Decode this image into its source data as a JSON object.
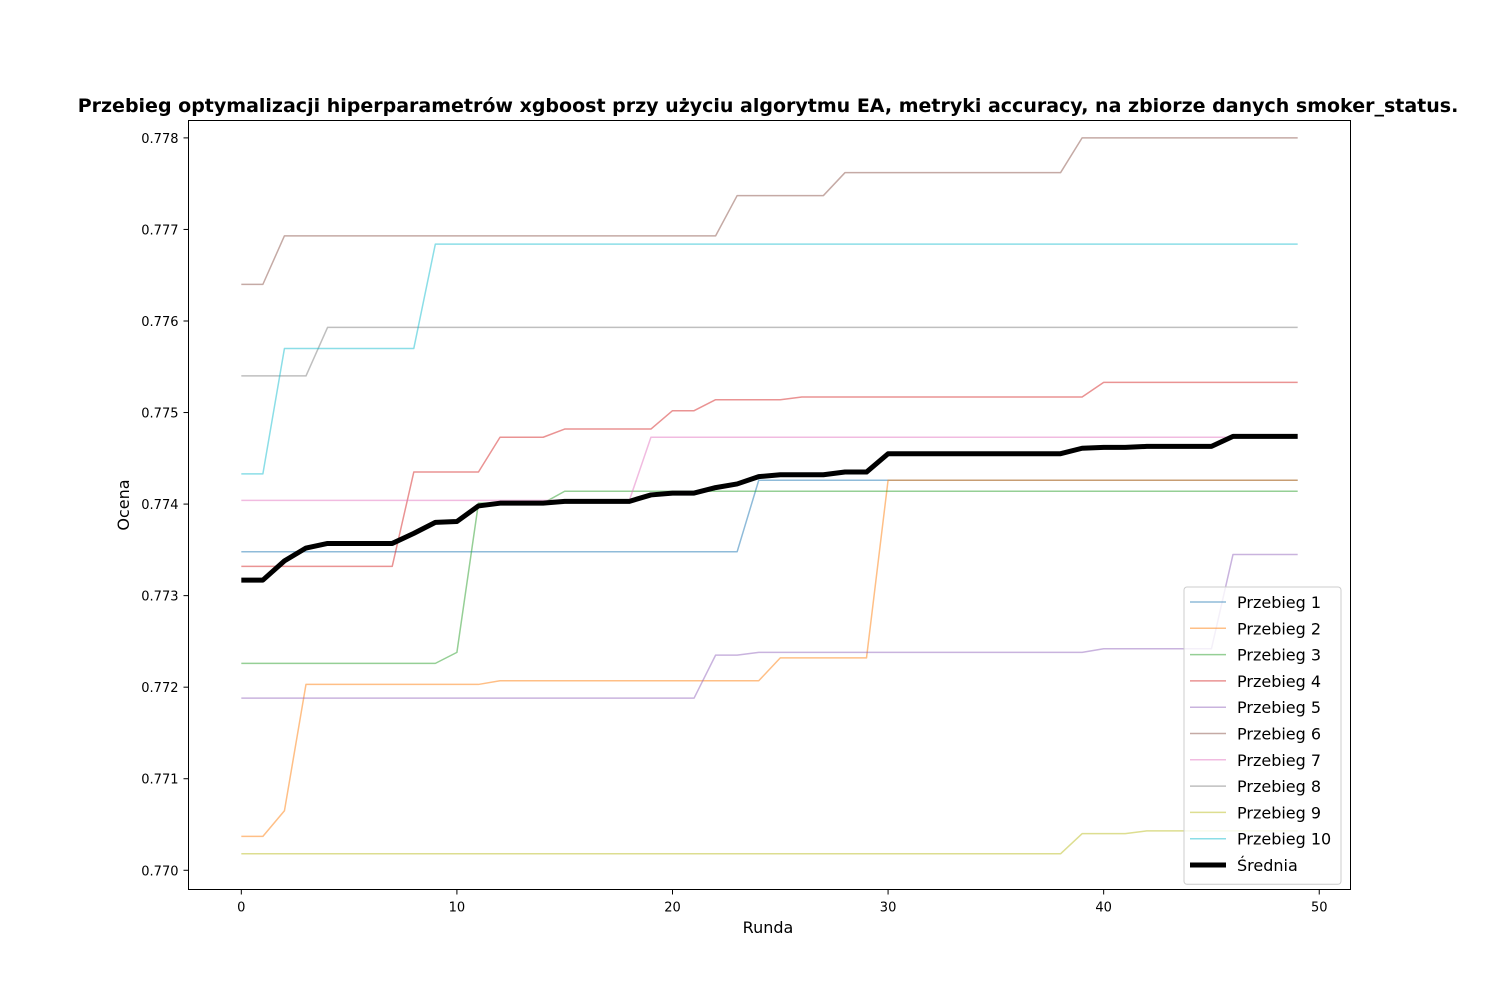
{
  "chart_data": {
    "type": "line",
    "title": "Przebieg optymalizacji hiperparametrów xgboost przy użyciu algorytmu EA, metryki accuracy, na zbiorze danych smoker_status.",
    "xlabel": "Runda",
    "ylabel": "Ocena",
    "xlim": [
      -2.45,
      51.45
    ],
    "ylim": [
      0.76979,
      0.77819
    ],
    "xticks": [
      0,
      10,
      20,
      30,
      40,
      50
    ],
    "xtick_labels": [
      "0",
      "10",
      "20",
      "30",
      "40",
      "50"
    ],
    "yticks": [
      0.77,
      0.771,
      0.772,
      0.773,
      0.774,
      0.775,
      0.776,
      0.777,
      0.778
    ],
    "ytick_labels": [
      "0.770",
      "0.771",
      "0.772",
      "0.773",
      "0.774",
      "0.775",
      "0.776",
      "0.777",
      "0.778"
    ],
    "grid": false,
    "legend_position": "lower-right",
    "x": [
      0,
      1,
      2,
      3,
      4,
      5,
      6,
      7,
      8,
      9,
      10,
      11,
      12,
      13,
      14,
      15,
      16,
      17,
      18,
      19,
      20,
      21,
      22,
      23,
      24,
      25,
      26,
      27,
      28,
      29,
      30,
      31,
      32,
      33,
      34,
      35,
      36,
      37,
      38,
      39,
      40,
      41,
      42,
      43,
      44,
      45,
      46,
      47,
      48,
      49
    ],
    "series": [
      {
        "name": "Przebieg 1",
        "color": "#1f77b4",
        "opacity": 0.5,
        "width": 1.5,
        "values": [
          0.77348,
          0.77348,
          0.77348,
          0.77348,
          0.77348,
          0.77348,
          0.77348,
          0.77348,
          0.77348,
          0.77348,
          0.77348,
          0.77348,
          0.77348,
          0.77348,
          0.77348,
          0.77348,
          0.77348,
          0.77348,
          0.77348,
          0.77348,
          0.77348,
          0.77348,
          0.77348,
          0.77348,
          0.77426,
          0.77426,
          0.77426,
          0.77426,
          0.77426,
          0.77426,
          0.77426,
          0.77426,
          0.77426,
          0.77426,
          0.77426,
          0.77426,
          0.77426,
          0.77426,
          0.77426,
          0.77426,
          0.77426,
          0.77426,
          0.77426,
          0.77426,
          0.77426,
          0.77426,
          0.77426,
          0.77426,
          0.77426,
          0.77426
        ]
      },
      {
        "name": "Przebieg 2",
        "color": "#ff7f0e",
        "opacity": 0.5,
        "width": 1.5,
        "values": [
          0.77037,
          0.77037,
          0.77065,
          0.77203,
          0.77203,
          0.77203,
          0.77203,
          0.77203,
          0.77203,
          0.77203,
          0.77203,
          0.77203,
          0.77207,
          0.77207,
          0.77207,
          0.77207,
          0.77207,
          0.77207,
          0.77207,
          0.77207,
          0.77207,
          0.77207,
          0.77207,
          0.77207,
          0.77207,
          0.77232,
          0.77232,
          0.77232,
          0.77232,
          0.77232,
          0.77426,
          0.77426,
          0.77426,
          0.77426,
          0.77426,
          0.77426,
          0.77426,
          0.77426,
          0.77426,
          0.77426,
          0.77426,
          0.77426,
          0.77426,
          0.77426,
          0.77426,
          0.77426,
          0.77426,
          0.77426,
          0.77426,
          0.77426
        ]
      },
      {
        "name": "Przebieg 3",
        "color": "#2ca02c",
        "opacity": 0.5,
        "width": 1.5,
        "values": [
          0.77226,
          0.77226,
          0.77226,
          0.77226,
          0.77226,
          0.77226,
          0.77226,
          0.77226,
          0.77226,
          0.77226,
          0.77238,
          0.77401,
          0.77401,
          0.77401,
          0.77401,
          0.77414,
          0.77414,
          0.77414,
          0.77414,
          0.77414,
          0.77414,
          0.77414,
          0.77414,
          0.77414,
          0.77414,
          0.77414,
          0.77414,
          0.77414,
          0.77414,
          0.77414,
          0.77414,
          0.77414,
          0.77414,
          0.77414,
          0.77414,
          0.77414,
          0.77414,
          0.77414,
          0.77414,
          0.77414,
          0.77414,
          0.77414,
          0.77414,
          0.77414,
          0.77414,
          0.77414,
          0.77414,
          0.77414,
          0.77414,
          0.77414
        ]
      },
      {
        "name": "Przebieg 4",
        "color": "#d62728",
        "opacity": 0.5,
        "width": 1.5,
        "values": [
          0.77332,
          0.77332,
          0.77332,
          0.77332,
          0.77332,
          0.77332,
          0.77332,
          0.77332,
          0.77435,
          0.77435,
          0.77435,
          0.77435,
          0.77473,
          0.77473,
          0.77473,
          0.77482,
          0.77482,
          0.77482,
          0.77482,
          0.77482,
          0.77502,
          0.77502,
          0.77514,
          0.77514,
          0.77514,
          0.77514,
          0.77517,
          0.77517,
          0.77517,
          0.77517,
          0.77517,
          0.77517,
          0.77517,
          0.77517,
          0.77517,
          0.77517,
          0.77517,
          0.77517,
          0.77517,
          0.77517,
          0.77533,
          0.77533,
          0.77533,
          0.77533,
          0.77533,
          0.77533,
          0.77533,
          0.77533,
          0.77533,
          0.77533
        ]
      },
      {
        "name": "Przebieg 5",
        "color": "#9467bd",
        "opacity": 0.5,
        "width": 1.5,
        "values": [
          0.77188,
          0.77188,
          0.77188,
          0.77188,
          0.77188,
          0.77188,
          0.77188,
          0.77188,
          0.77188,
          0.77188,
          0.77188,
          0.77188,
          0.77188,
          0.77188,
          0.77188,
          0.77188,
          0.77188,
          0.77188,
          0.77188,
          0.77188,
          0.77188,
          0.77188,
          0.77235,
          0.77235,
          0.77238,
          0.77238,
          0.77238,
          0.77238,
          0.77238,
          0.77238,
          0.77238,
          0.77238,
          0.77238,
          0.77238,
          0.77238,
          0.77238,
          0.77238,
          0.77238,
          0.77238,
          0.77238,
          0.77242,
          0.77242,
          0.77242,
          0.77242,
          0.77242,
          0.77242,
          0.77345,
          0.77345,
          0.77345,
          0.77345
        ]
      },
      {
        "name": "Przebieg 6",
        "color": "#8c564b",
        "opacity": 0.5,
        "width": 1.5,
        "values": [
          0.7764,
          0.7764,
          0.77693,
          0.77693,
          0.77693,
          0.77693,
          0.77693,
          0.77693,
          0.77693,
          0.77693,
          0.77693,
          0.77693,
          0.77693,
          0.77693,
          0.77693,
          0.77693,
          0.77693,
          0.77693,
          0.77693,
          0.77693,
          0.77693,
          0.77693,
          0.77693,
          0.77737,
          0.77737,
          0.77737,
          0.77737,
          0.77737,
          0.77762,
          0.77762,
          0.77762,
          0.77762,
          0.77762,
          0.77762,
          0.77762,
          0.77762,
          0.77762,
          0.77762,
          0.77762,
          0.778,
          0.778,
          0.778,
          0.778,
          0.778,
          0.778,
          0.778,
          0.778,
          0.778,
          0.778,
          0.778
        ]
      },
      {
        "name": "Przebieg 7",
        "color": "#e377c2",
        "opacity": 0.5,
        "width": 1.5,
        "values": [
          0.77404,
          0.77404,
          0.77404,
          0.77404,
          0.77404,
          0.77404,
          0.77404,
          0.77404,
          0.77404,
          0.77404,
          0.77404,
          0.77404,
          0.77404,
          0.77404,
          0.77404,
          0.77404,
          0.77404,
          0.77404,
          0.77404,
          0.77473,
          0.77473,
          0.77473,
          0.77473,
          0.77473,
          0.77473,
          0.77473,
          0.77473,
          0.77473,
          0.77473,
          0.77473,
          0.77473,
          0.77473,
          0.77473,
          0.77473,
          0.77473,
          0.77473,
          0.77473,
          0.77473,
          0.77473,
          0.77473,
          0.77473,
          0.77473,
          0.77473,
          0.77473,
          0.77473,
          0.77473,
          0.77473,
          0.77473,
          0.77473,
          0.77473
        ]
      },
      {
        "name": "Przebieg 8",
        "color": "#7f7f7f",
        "opacity": 0.5,
        "width": 1.5,
        "values": [
          0.7754,
          0.7754,
          0.7754,
          0.7754,
          0.77593,
          0.77593,
          0.77593,
          0.77593,
          0.77593,
          0.77593,
          0.77593,
          0.77593,
          0.77593,
          0.77593,
          0.77593,
          0.77593,
          0.77593,
          0.77593,
          0.77593,
          0.77593,
          0.77593,
          0.77593,
          0.77593,
          0.77593,
          0.77593,
          0.77593,
          0.77593,
          0.77593,
          0.77593,
          0.77593,
          0.77593,
          0.77593,
          0.77593,
          0.77593,
          0.77593,
          0.77593,
          0.77593,
          0.77593,
          0.77593,
          0.77593,
          0.77593,
          0.77593,
          0.77593,
          0.77593,
          0.77593,
          0.77593,
          0.77593,
          0.77593,
          0.77593,
          0.77593
        ]
      },
      {
        "name": "Przebieg 9",
        "color": "#bcbd22",
        "opacity": 0.5,
        "width": 1.5,
        "values": [
          0.77018,
          0.77018,
          0.77018,
          0.77018,
          0.77018,
          0.77018,
          0.77018,
          0.77018,
          0.77018,
          0.77018,
          0.77018,
          0.77018,
          0.77018,
          0.77018,
          0.77018,
          0.77018,
          0.77018,
          0.77018,
          0.77018,
          0.77018,
          0.77018,
          0.77018,
          0.77018,
          0.77018,
          0.77018,
          0.77018,
          0.77018,
          0.77018,
          0.77018,
          0.77018,
          0.77018,
          0.77018,
          0.77018,
          0.77018,
          0.77018,
          0.77018,
          0.77018,
          0.77018,
          0.77018,
          0.7704,
          0.7704,
          0.7704,
          0.77043,
          0.77043,
          0.77043,
          0.77043,
          0.77043,
          0.77043,
          0.77043,
          0.77043
        ]
      },
      {
        "name": "Przebieg 10",
        "color": "#17becf",
        "opacity": 0.5,
        "width": 1.5,
        "values": [
          0.77433,
          0.77433,
          0.7757,
          0.7757,
          0.7757,
          0.7757,
          0.7757,
          0.7757,
          0.7757,
          0.77684,
          0.77684,
          0.77684,
          0.77684,
          0.77684,
          0.77684,
          0.77684,
          0.77684,
          0.77684,
          0.77684,
          0.77684,
          0.77684,
          0.77684,
          0.77684,
          0.77684,
          0.77684,
          0.77684,
          0.77684,
          0.77684,
          0.77684,
          0.77684,
          0.77684,
          0.77684,
          0.77684,
          0.77684,
          0.77684,
          0.77684,
          0.77684,
          0.77684,
          0.77684,
          0.77684,
          0.77684,
          0.77684,
          0.77684,
          0.77684,
          0.77684,
          0.77684,
          0.77684,
          0.77684,
          0.77684,
          0.77684
        ]
      },
      {
        "name": "Średnia",
        "color": "#000000",
        "opacity": 1,
        "width": 5,
        "values": [
          0.77317,
          0.77317,
          0.77338,
          0.77352,
          0.77357,
          0.77357,
          0.77357,
          0.77357,
          0.77368,
          0.7738,
          0.77381,
          0.77398,
          0.77401,
          0.77401,
          0.77401,
          0.77403,
          0.77403,
          0.77403,
          0.77403,
          0.7741,
          0.77412,
          0.77412,
          0.77418,
          0.77422,
          0.7743,
          0.77432,
          0.77432,
          0.77432,
          0.77435,
          0.77435,
          0.77455,
          0.77455,
          0.77455,
          0.77455,
          0.77455,
          0.77455,
          0.77455,
          0.77455,
          0.77455,
          0.77461,
          0.77462,
          0.77462,
          0.77463,
          0.77463,
          0.77463,
          0.77463,
          0.77474,
          0.77474,
          0.77474,
          0.77474
        ]
      }
    ]
  }
}
